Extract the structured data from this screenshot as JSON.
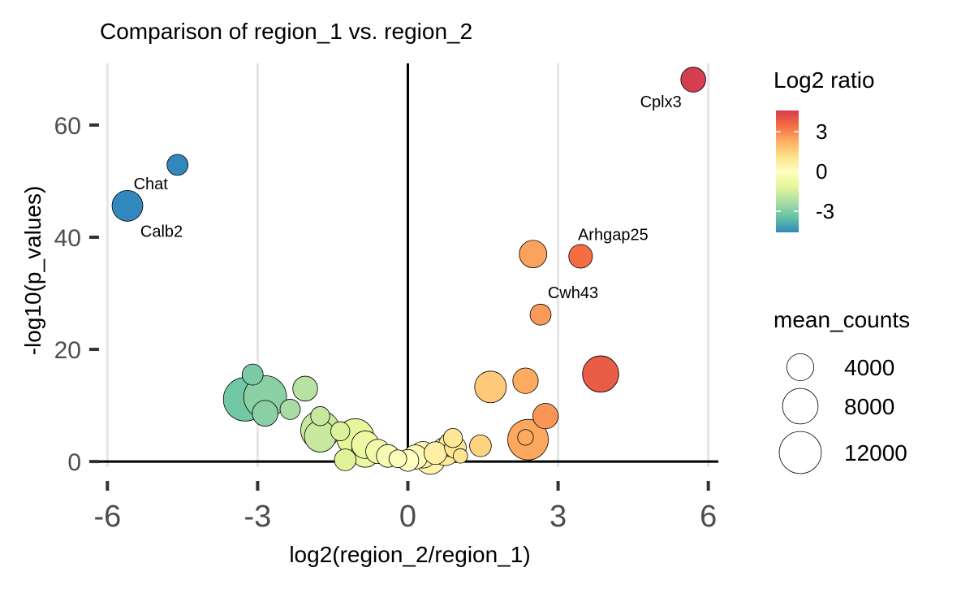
{
  "chart_data": {
    "type": "scatter",
    "title": "Comparison of region_1 vs. region_2",
    "xlabel": "log2(region_2/region_1)",
    "ylabel": "-log10(p_values)",
    "xlim": [
      -6.2,
      6.2
    ],
    "ylim": [
      -1,
      71
    ],
    "xticks": [
      -6,
      -3,
      0,
      3,
      6
    ],
    "xtick_labels": [
      "-6",
      "-3",
      "0",
      "3",
      "6"
    ],
    "yticks": [
      0,
      20,
      40,
      60
    ],
    "ytick_labels": [
      "0",
      "20",
      "40",
      "60"
    ],
    "grid": "vertical major lines",
    "color_legend": {
      "title": "Log2 ratio",
      "range": [
        -4.6,
        4.6
      ],
      "tick_values": [
        3,
        0,
        -3
      ],
      "tick_labels": [
        "3",
        "0",
        "-3"
      ],
      "palette": [
        "#3288bd",
        "#66c2a5",
        "#abdda4",
        "#e6f598",
        "#ffffbf",
        "#fee08b",
        "#fdae61",
        "#f46d43",
        "#d53e4f"
      ]
    },
    "size_legend": {
      "title": "mean_counts",
      "labels": [
        "4000",
        "8000",
        "12000"
      ],
      "values": [
        4000,
        8000,
        12000
      ]
    },
    "points": [
      {
        "x": 5.7,
        "y": 68.1,
        "counts": 3200,
        "label": "Cplx3"
      },
      {
        "x": -4.6,
        "y": 52.9,
        "counts": 2000,
        "label": "Chat"
      },
      {
        "x": -5.6,
        "y": 45.6,
        "counts": 5600,
        "label": "Calb2"
      },
      {
        "x": 3.45,
        "y": 36.6,
        "counts": 2800,
        "label": "Arhgap25"
      },
      {
        "x": 2.5,
        "y": 37.0,
        "counts": 4200,
        "label": ""
      },
      {
        "x": 2.65,
        "y": 26.2,
        "counts": 2000,
        "label": "Cwh43"
      },
      {
        "x": 3.85,
        "y": 15.6,
        "counts": 8400,
        "label": ""
      },
      {
        "x": 2.35,
        "y": 14.4,
        "counts": 3400,
        "label": ""
      },
      {
        "x": 1.65,
        "y": 13.3,
        "counts": 6000,
        "label": ""
      },
      {
        "x": 2.75,
        "y": 8.1,
        "counts": 3400,
        "label": ""
      },
      {
        "x": 2.4,
        "y": 3.9,
        "counts": 11000,
        "label": ""
      },
      {
        "x": 2.35,
        "y": 4.3,
        "counts": 800,
        "label": ""
      },
      {
        "x": -3.1,
        "y": 15.5,
        "counts": 2000,
        "label": ""
      },
      {
        "x": -3.25,
        "y": 11.1,
        "counts": 13000,
        "label": ""
      },
      {
        "x": -2.85,
        "y": 11.5,
        "counts": 12500,
        "label": ""
      },
      {
        "x": -2.05,
        "y": 13.0,
        "counts": 3200,
        "label": ""
      },
      {
        "x": -2.85,
        "y": 8.6,
        "counts": 3500,
        "label": ""
      },
      {
        "x": -2.35,
        "y": 9.3,
        "counts": 1800,
        "label": ""
      },
      {
        "x": -1.75,
        "y": 8.1,
        "counts": 1500,
        "label": ""
      },
      {
        "x": -1.75,
        "y": 5.6,
        "counts": 10000,
        "label": ""
      },
      {
        "x": -1.75,
        "y": 4.5,
        "counts": 6000,
        "label": ""
      },
      {
        "x": -1.35,
        "y": 5.4,
        "counts": 1500,
        "label": ""
      },
      {
        "x": -1.05,
        "y": 4.3,
        "counts": 9000,
        "label": ""
      },
      {
        "x": -1.25,
        "y": 0.3,
        "counts": 2200,
        "label": ""
      },
      {
        "x": -0.85,
        "y": 3.0,
        "counts": 4200,
        "label": ""
      },
      {
        "x": -0.85,
        "y": 1.5,
        "counts": 4500,
        "label": ""
      },
      {
        "x": -0.6,
        "y": 1.8,
        "counts": 3000,
        "label": ""
      },
      {
        "x": -0.4,
        "y": 1.0,
        "counts": 2500,
        "label": ""
      },
      {
        "x": -0.2,
        "y": 0.5,
        "counts": 1200,
        "label": ""
      },
      {
        "x": 0.0,
        "y": 0.2,
        "counts": 2200,
        "label": ""
      },
      {
        "x": 0.15,
        "y": 0.8,
        "counts": 3000,
        "label": ""
      },
      {
        "x": 0.3,
        "y": 1.2,
        "counts": 3800,
        "label": ""
      },
      {
        "x": 0.45,
        "y": 0.4,
        "counts": 5200,
        "label": ""
      },
      {
        "x": 0.55,
        "y": 1.5,
        "counts": 2500,
        "label": ""
      },
      {
        "x": 0.75,
        "y": 1.8,
        "counts": 4500,
        "label": ""
      },
      {
        "x": 0.85,
        "y": 3.0,
        "counts": 2800,
        "label": ""
      },
      {
        "x": 0.95,
        "y": 2.5,
        "counts": 2200,
        "label": ""
      },
      {
        "x": 0.9,
        "y": 4.2,
        "counts": 1500,
        "label": ""
      },
      {
        "x": 1.05,
        "y": 1.0,
        "counts": 600,
        "label": ""
      },
      {
        "x": 1.45,
        "y": 2.8,
        "counts": 2200,
        "label": ""
      }
    ]
  }
}
